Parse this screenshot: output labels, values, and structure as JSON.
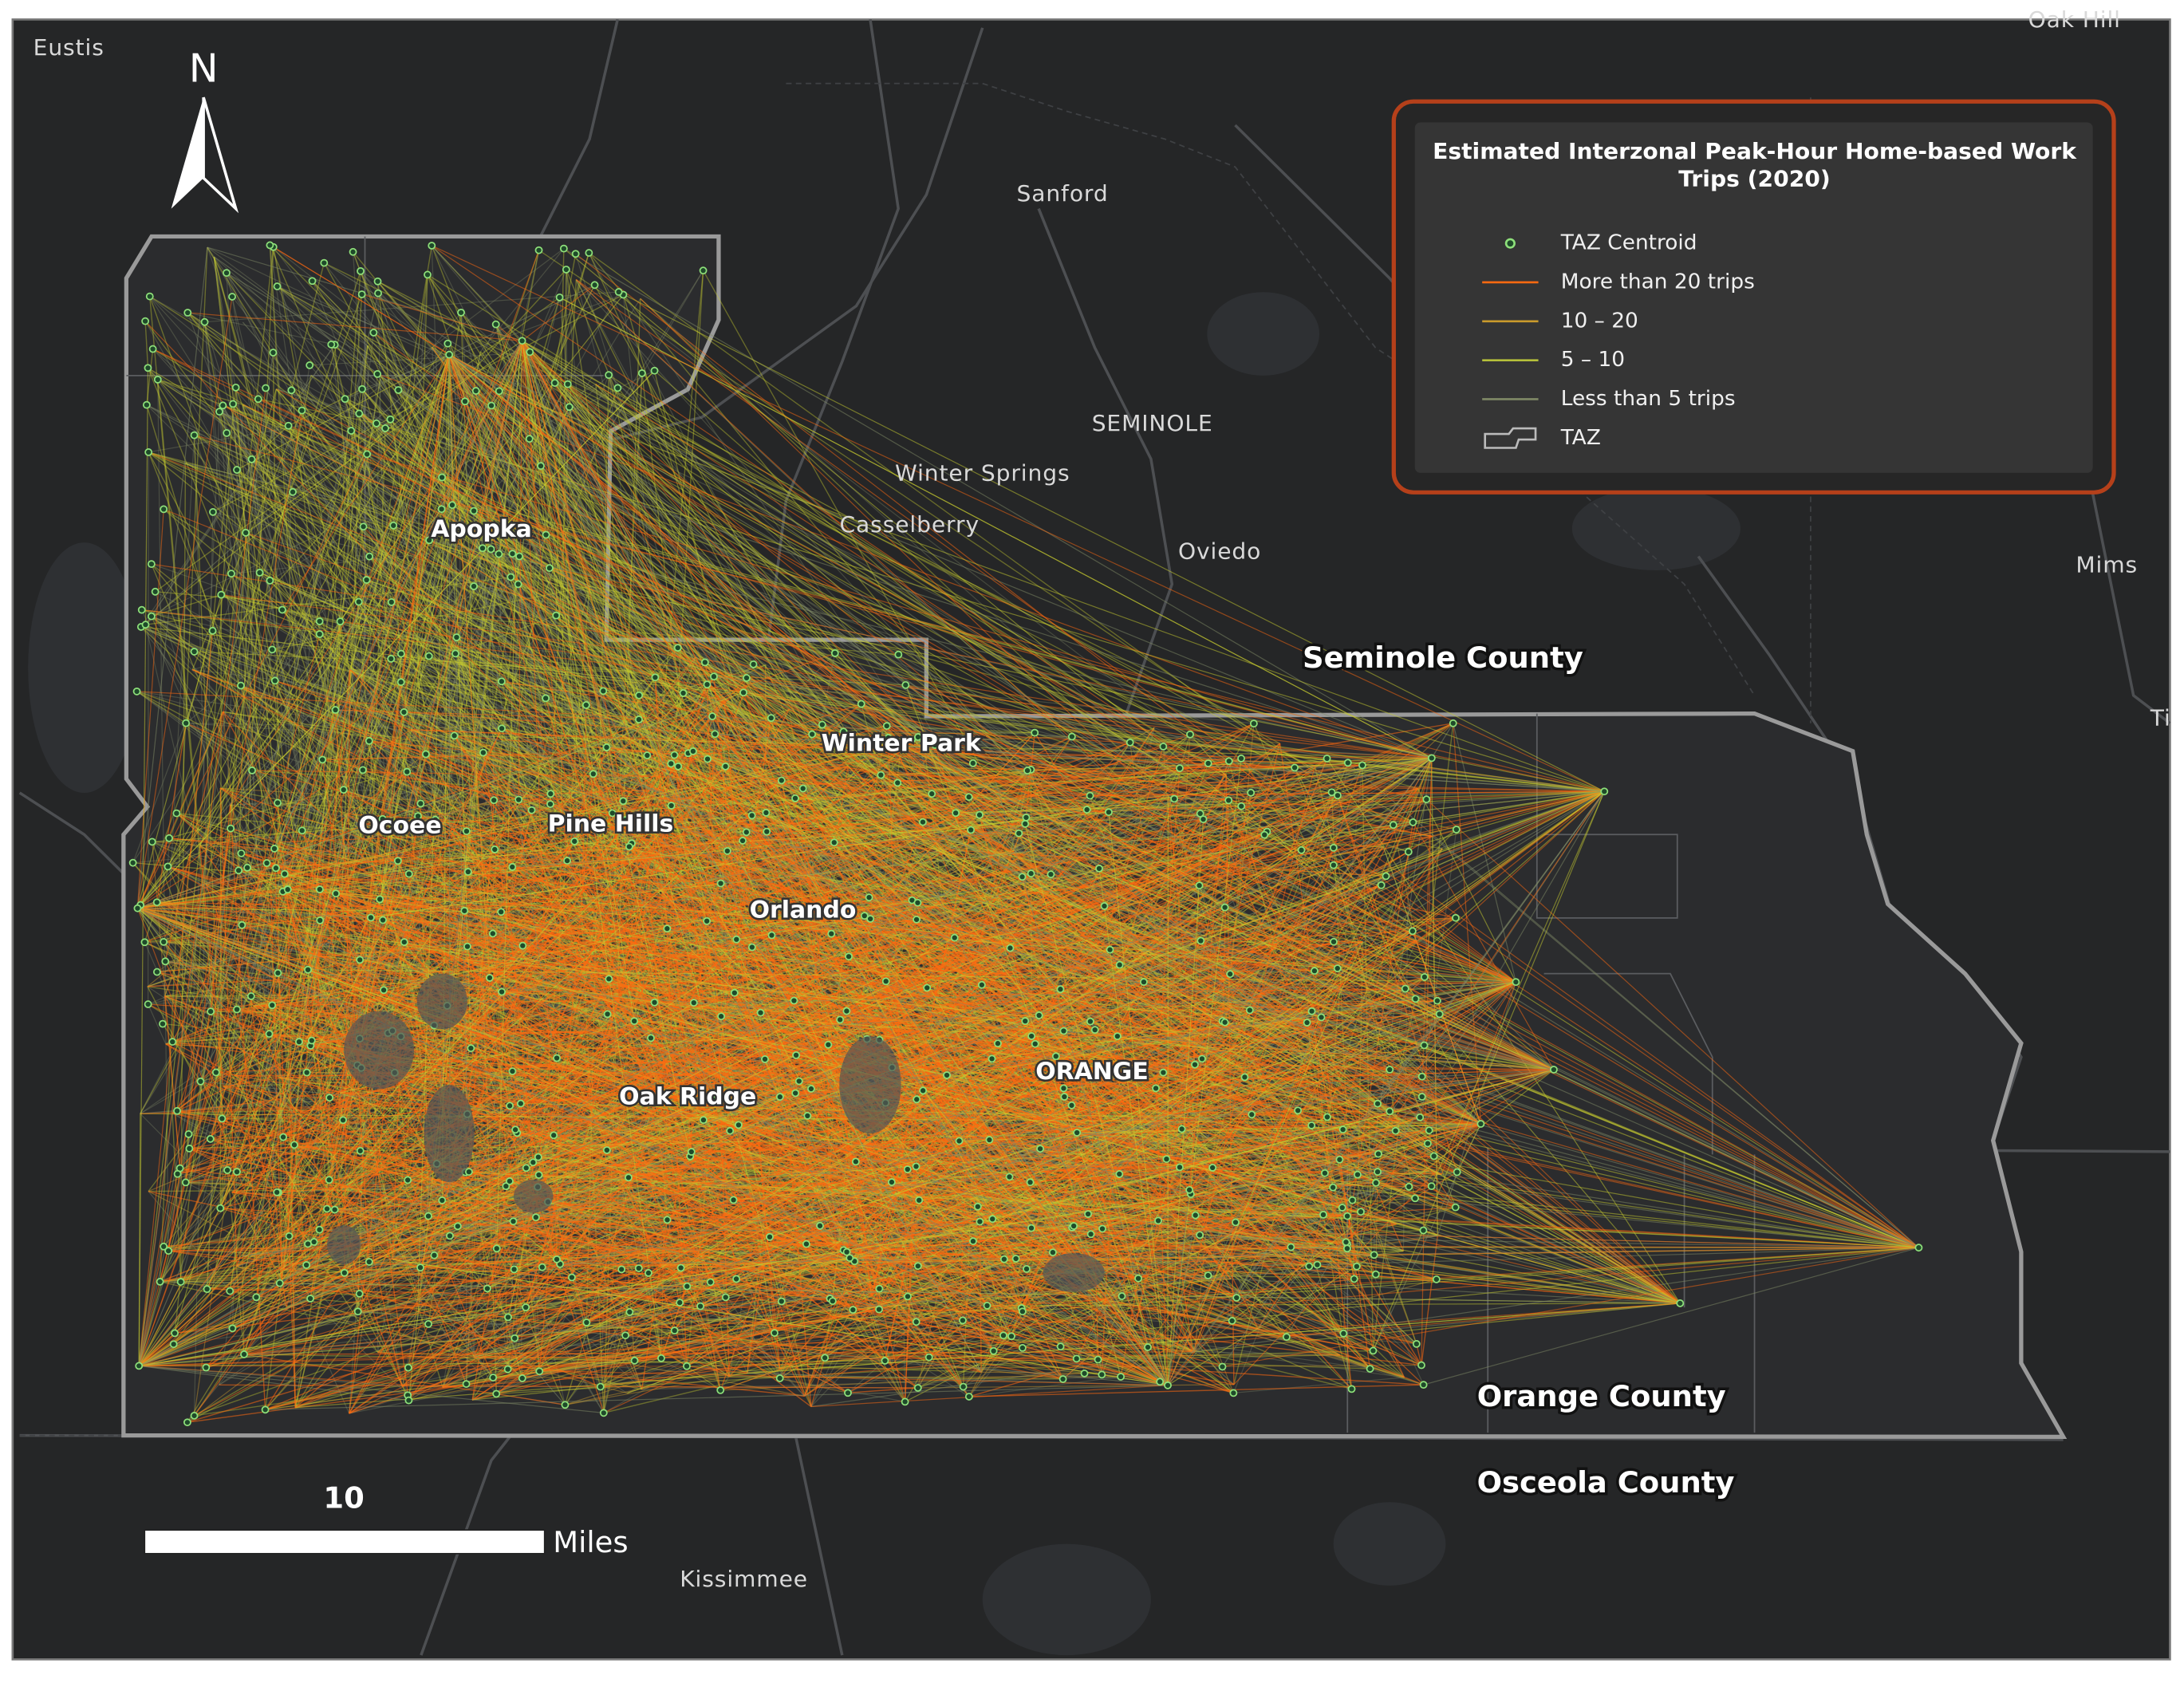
{
  "map": {
    "north_arrow": "N",
    "places": [
      {
        "label": "Eustis"
      },
      {
        "label": "Oak Hill"
      },
      {
        "label": "Sanford"
      },
      {
        "label": "SEMINOLE"
      },
      {
        "label": "Winter Springs"
      },
      {
        "label": "Casselberry"
      },
      {
        "label": "Oviedo"
      },
      {
        "label": "Mims"
      },
      {
        "label": "Ti"
      },
      {
        "label": "Kissimmee"
      }
    ],
    "cities": [
      {
        "label": "Apopka"
      },
      {
        "label": "Winter Park"
      },
      {
        "label": "Ocoee"
      },
      {
        "label": "Pine Hills"
      },
      {
        "label": "Orlando"
      },
      {
        "label": "ORANGE"
      },
      {
        "label": "Oak Ridge"
      }
    ],
    "counties": [
      {
        "label": "Seminole County"
      },
      {
        "label": "Orange County"
      },
      {
        "label": "Osceola County"
      }
    ],
    "legend": {
      "title": "Estimated Interzonal Peak-Hour Home-based Work Trips (2020)",
      "items": [
        {
          "label": "TAZ Centroid"
        },
        {
          "label": "More than 20 trips"
        },
        {
          "label": "10 – 20"
        },
        {
          "label": "5 – 10"
        },
        {
          "label": "Less than 5 trips"
        },
        {
          "label": "TAZ"
        }
      ]
    },
    "scale_bar": {
      "distance": "10",
      "unit": "Miles"
    }
  }
}
